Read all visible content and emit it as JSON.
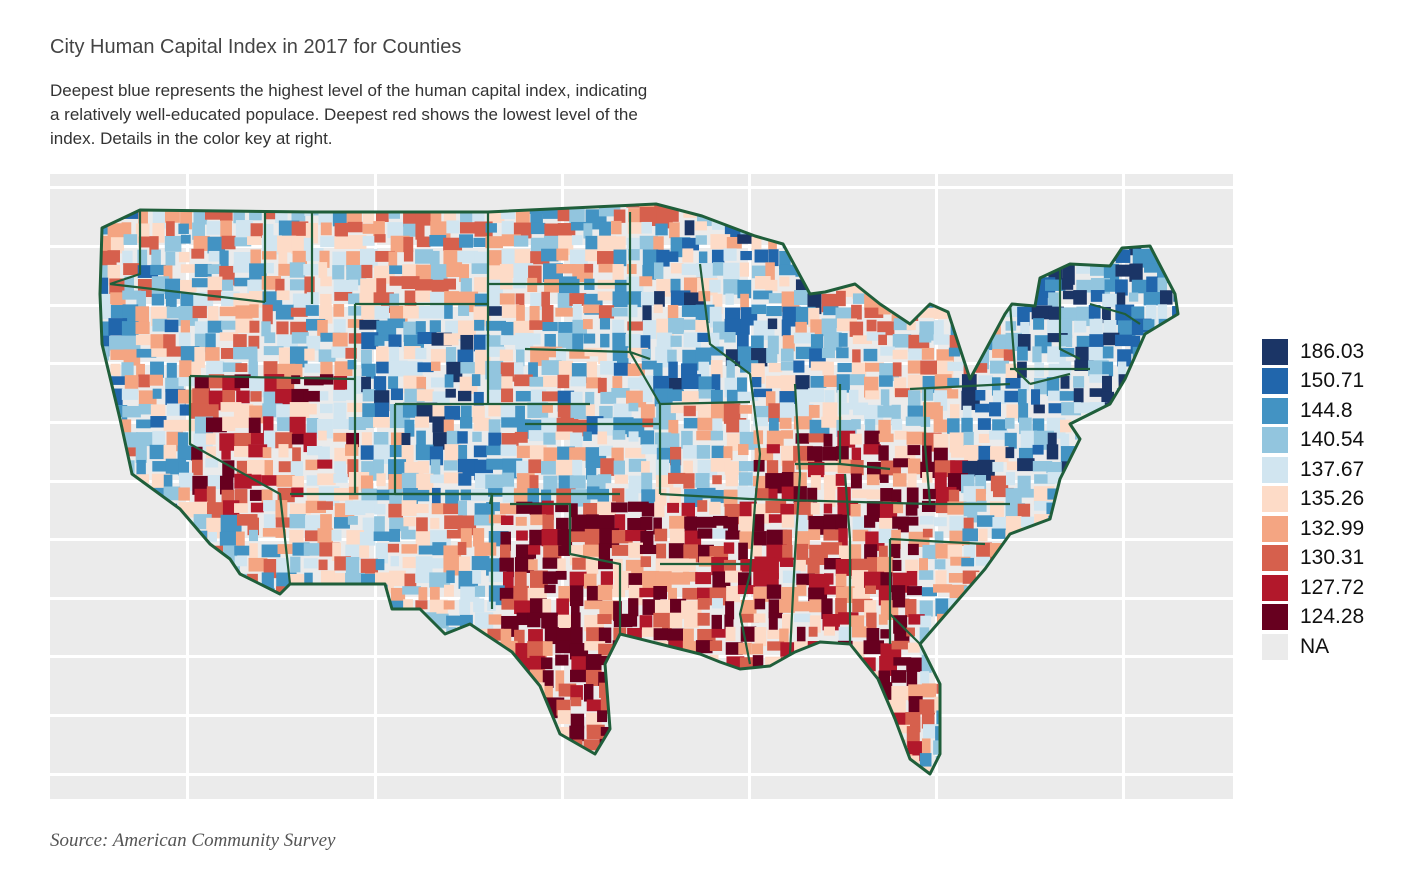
{
  "title": "City Human Capital Index in 2017 for Counties",
  "subtitle": "Deepest blue represents the highest level of the human capital index, indicating a relatively well-educated populace. Deepest red shows the lowest level of the index. Details in the color key at right.",
  "source": "Source: American Community Survey",
  "colors": {
    "panel_bg": "#ebebeb",
    "grid": "#ffffff",
    "state_border": "#1f5e3a"
  },
  "chart_data": {
    "type": "choropleth",
    "title": "City Human Capital Index in 2017 for Counties",
    "legend": [
      {
        "label": "186.03",
        "color": "#1b3566"
      },
      {
        "label": "150.71",
        "color": "#2166ac"
      },
      {
        "label": "144.8",
        "color": "#4393c3"
      },
      {
        "label": "140.54",
        "color": "#92c5de"
      },
      {
        "label": "137.67",
        "color": "#d1e5f0"
      },
      {
        "label": "135.26",
        "color": "#fddbc7"
      },
      {
        "label": "132.99",
        "color": "#f4a582"
      },
      {
        "label": "130.31",
        "color": "#d6604d"
      },
      {
        "label": "127.72",
        "color": "#b2182b"
      },
      {
        "label": "124.28",
        "color": "#67001f"
      },
      {
        "label": "NA",
        "color": "#ebebeb"
      }
    ]
  }
}
